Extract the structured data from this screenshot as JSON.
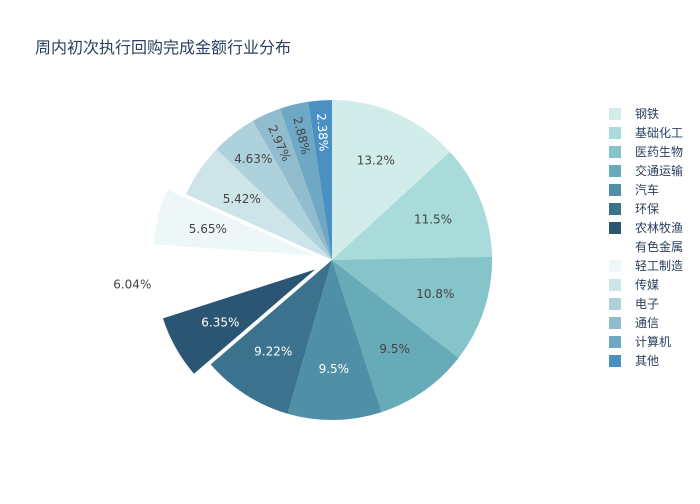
{
  "chart_data": {
    "type": "pie",
    "title": "周内初次执行回购完成金额行业分布",
    "legend_position": "right",
    "slices": [
      {
        "label": "钢铁",
        "value": 13.2,
        "text": "13.2%",
        "color": "#d1ece9",
        "text_color": "#444444"
      },
      {
        "label": "基础化工",
        "value": 11.5,
        "text": "11.5%",
        "color": "#a8dbd9",
        "text_color": "#444444"
      },
      {
        "label": "医药生物",
        "value": 10.8,
        "text": "10.8%",
        "color": "#85c4c9",
        "text_color": "#444444"
      },
      {
        "label": "交通运输",
        "value": 9.5,
        "text": "9.5%",
        "color": "#68abb8",
        "text_color": "#444444"
      },
      {
        "label": "汽车",
        "value": 9.5,
        "text": "9.5%",
        "color": "#4f90a6",
        "text_color": "#ffffff"
      },
      {
        "label": "环保",
        "value": 9.22,
        "text": "9.22%",
        "color": "#3b738f",
        "text_color": "#ffffff"
      },
      {
        "label": "农林牧渔",
        "value": 6.35,
        "text": "6.35%",
        "color": "#2a5674",
        "text_color": "#ffffff",
        "pulled": true
      },
      {
        "label": "有色金属",
        "value": 6.04,
        "text": "6.04%",
        "color": "#ffffff",
        "text_color": "#444444",
        "pulled": true,
        "label_outside": true
      },
      {
        "label": "轻工制造",
        "value": 5.65,
        "text": "5.65%",
        "color": "#eef7f7",
        "text_color": "#444444",
        "pulled": true
      },
      {
        "label": "传媒",
        "value": 5.42,
        "text": "5.42%",
        "color": "#cde5e8",
        "text_color": "#444444"
      },
      {
        "label": "电子",
        "value": 4.63,
        "text": "4.63%",
        "color": "#aed2dc",
        "text_color": "#444444"
      },
      {
        "label": "通信",
        "value": 2.97,
        "text": "2.97%",
        "color": "#91bccd",
        "text_color": "#444444"
      },
      {
        "label": "计算机",
        "value": 2.88,
        "text": "2.88%",
        "color": "#6ea8c4",
        "text_color": "#444444"
      },
      {
        "label": "其他",
        "value": 2.38,
        "text": "2.38%",
        "color": "#4a90c2",
        "text_color": "#ffffff"
      }
    ]
  }
}
